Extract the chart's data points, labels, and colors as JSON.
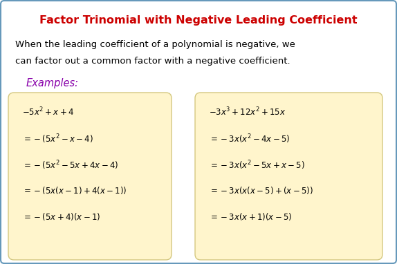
{
  "title": "Factor Trinomial with Negative Leading Coefficient",
  "title_color": "#CC0000",
  "description_line1": "When the leading coefficient of a polynomial is negative, we",
  "description_line2": "can factor out a common factor with a negative coefficient.",
  "examples_label": "Examples:",
  "examples_color": "#8800AA",
  "box_bg_color": "#FFF5CC",
  "box_edge_color": "#D4C880",
  "border_color": "#6699BB",
  "bg_color": "#FFFFFF",
  "left_box_lines": [
    "$-5x^2+x+4$",
    "$=-(5x^2-x-4)$",
    "$=-(5x^2-5x+4x-4)$",
    "$=-\\left(5x(x-1)+4(x-1)\\right)$",
    "$=-(5x+4)(x-1)$"
  ],
  "right_box_lines": [
    "$-3x^3+12x^2+15x$",
    "$=-3x(x^2-4x-5)$",
    "$=-3x(x^2-5x+x-5)$",
    "$=-3x\\left(x(x-5)+(x-5)\\right)$",
    "$=-3x(x+1)(x-5)$"
  ]
}
